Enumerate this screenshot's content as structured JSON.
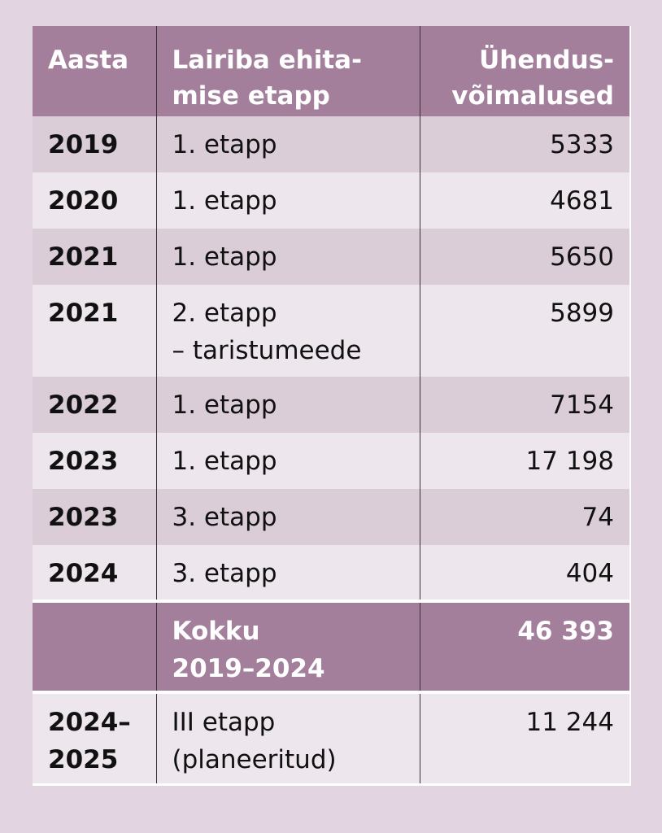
{
  "header": {
    "year": "Aasta",
    "stage": "Lairiba ehita-\nmise etapp",
    "connections": "Ühendus-\nvõimalused"
  },
  "rows": [
    {
      "year": "2019",
      "stage": "1. etapp",
      "connections": "5333"
    },
    {
      "year": "2020",
      "stage": "1. etapp",
      "connections": "4681"
    },
    {
      "year": "2021",
      "stage": "1. etapp",
      "connections": "5650"
    },
    {
      "year": "2021",
      "stage": "2. etapp\n– taristumeede",
      "connections": "5899"
    },
    {
      "year": "2022",
      "stage": "1. etapp",
      "connections": "7154"
    },
    {
      "year": "2023",
      "stage": "1. etapp",
      "connections": "17 198"
    },
    {
      "year": "2023",
      "stage": "3. etapp",
      "connections": "74"
    },
    {
      "year": "2024",
      "stage": "3. etapp",
      "connections": "404"
    }
  ],
  "total": {
    "year": "",
    "stage": "Kokku\n2019–2024",
    "connections": "46 393"
  },
  "planned": {
    "year": "2024–\n2025",
    "stage": "III etapp\n(planeeritud)",
    "connections": "11 244"
  }
}
